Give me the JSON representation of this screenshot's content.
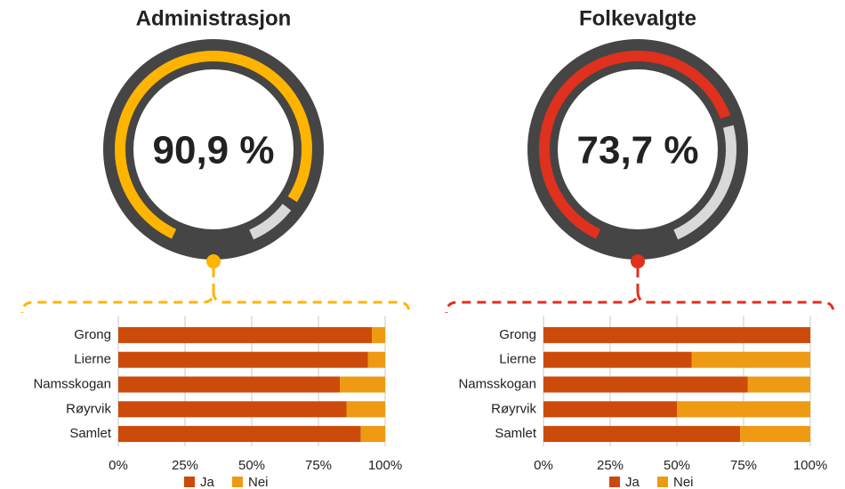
{
  "chart_data": [
    {
      "type": "gauge",
      "title": "Administrasjon",
      "values": [
        90.9
      ],
      "value_labels": [
        "90,9 %"
      ],
      "color": "#ffb400"
    },
    {
      "type": "stacked-barh",
      "categories": [
        "Grong",
        "Lierne",
        "Namsskogan",
        "Røyrvik",
        "Samlet"
      ],
      "series": [
        {
          "name": "Ja",
          "color": "#cc4a0a",
          "values": [
            95,
            93.5,
            83,
            85.5,
            90.9
          ]
        },
        {
          "name": "Nei",
          "color": "#ee9a12",
          "values": [
            5,
            6.5,
            17,
            14.5,
            9.1
          ]
        }
      ],
      "xlim": [
        0,
        100
      ],
      "xticks": [
        {
          "value": 0,
          "label": "0%"
        },
        {
          "value": 25,
          "label": "25%"
        },
        {
          "value": 50,
          "label": "50%"
        },
        {
          "value": 75,
          "label": "75%"
        },
        {
          "value": 100,
          "label": "100%"
        }
      ],
      "grid": true,
      "legend": "bottom"
    },
    {
      "type": "gauge",
      "title": "Folkevalgte",
      "values": [
        73.7
      ],
      "value_labels": [
        "73,7 %"
      ],
      "color": "#e0301e"
    },
    {
      "type": "stacked-barh",
      "categories": [
        "Grong",
        "Lierne",
        "Namsskogan",
        "Røyrvik",
        "Samlet"
      ],
      "series": [
        {
          "name": "Ja",
          "color": "#cc4a0a",
          "values": [
            100,
            55.5,
            76.5,
            50,
            73.7
          ]
        },
        {
          "name": "Nei",
          "color": "#ee9a12",
          "values": [
            0,
            44.5,
            23.5,
            50,
            26.3
          ]
        }
      ],
      "xlim": [
        0,
        100
      ],
      "xticks": [
        {
          "value": 0,
          "label": "0%"
        },
        {
          "value": 25,
          "label": "25%"
        },
        {
          "value": 50,
          "label": "50%"
        },
        {
          "value": 75,
          "label": "75%"
        },
        {
          "value": 100,
          "label": "100%"
        }
      ],
      "grid": true,
      "legend": "bottom"
    }
  ]
}
